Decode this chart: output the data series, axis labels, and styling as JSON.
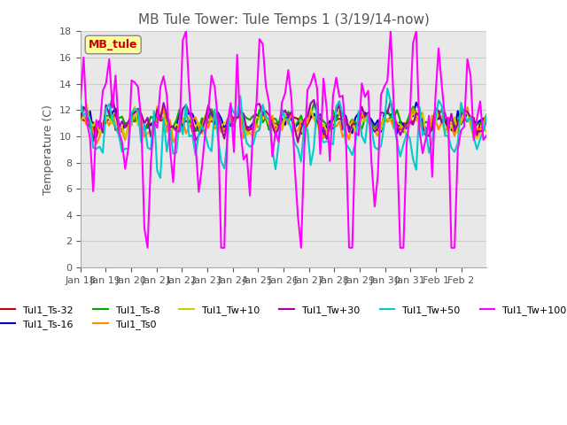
{
  "title": "MB Tule Tower: Tule Temps 1 (3/19/14-now)",
  "ylabel": "Temperature (C)",
  "ylim": [
    0,
    18
  ],
  "yticks": [
    0,
    2,
    4,
    6,
    8,
    10,
    12,
    14,
    16,
    18
  ],
  "xlabel_dates": [
    "Jan 18",
    "Jan 19",
    "Jan 20",
    "Jan 21",
    "Jan 22",
    "Jan 23",
    "Jan 24",
    "Jan 25",
    "Jan 26",
    "Jan 27",
    "Jan 28",
    "Jan 29",
    "Jan 30",
    "Jan 31",
    "Feb 1",
    "Feb 2"
  ],
  "series": {
    "Tul1_Ts-32": {
      "color": "#cc0000",
      "lw": 1.5
    },
    "Tul1_Ts-16": {
      "color": "#0000cc",
      "lw": 1.5
    },
    "Tul1_Ts-8": {
      "color": "#00aa00",
      "lw": 1.5
    },
    "Tul1_Ts0": {
      "color": "#ff8800",
      "lw": 1.5
    },
    "Tul1_Tw+10": {
      "color": "#cccc00",
      "lw": 1.5
    },
    "Tul1_Tw+30": {
      "color": "#aa00aa",
      "lw": 1.5
    },
    "Tul1_Tw+50": {
      "color": "#00cccc",
      "lw": 1.5
    },
    "Tul1_Tw+100": {
      "color": "#ff00ff",
      "lw": 1.5
    }
  },
  "annotation_box": {
    "label": "MB_tule",
    "color": "#cc0000",
    "bg": "#ffff99"
  },
  "bg_color": "#e8e8e8",
  "plot_bg": "#ffffff"
}
